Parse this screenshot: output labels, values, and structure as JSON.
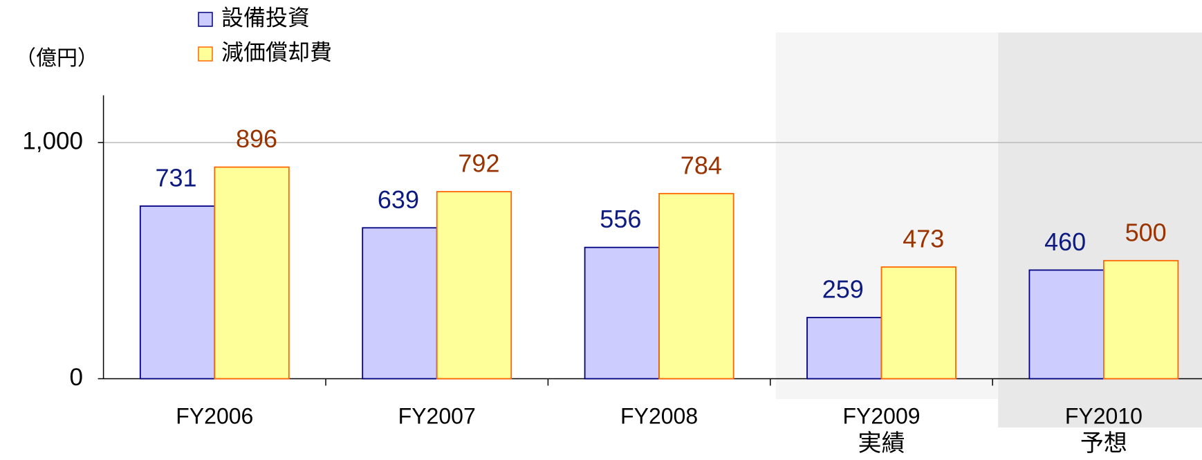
{
  "chart_data": {
    "type": "bar",
    "unit_label": "（億円）",
    "categories": [
      "FY2006",
      "FY2007",
      "FY2008",
      "FY2009",
      "FY2010"
    ],
    "category_notes": [
      null,
      null,
      null,
      "実績",
      "予想"
    ],
    "series": [
      {
        "name": "設備投資",
        "color": "#ccccff",
        "edge_color": "#000080",
        "label_color": "#0d1a80",
        "values": [
          731,
          639,
          556,
          259,
          460
        ]
      },
      {
        "name": "減価償却費",
        "color": "#ffff99",
        "edge_color": "#ff6600",
        "label_color": "#993300",
        "values": [
          896,
          792,
          784,
          473,
          500
        ]
      }
    ],
    "ylim": [
      0,
      1200
    ],
    "yticks": [
      0,
      {
        "value": 1000,
        "label": "1,000"
      }
    ],
    "grid": true
  }
}
